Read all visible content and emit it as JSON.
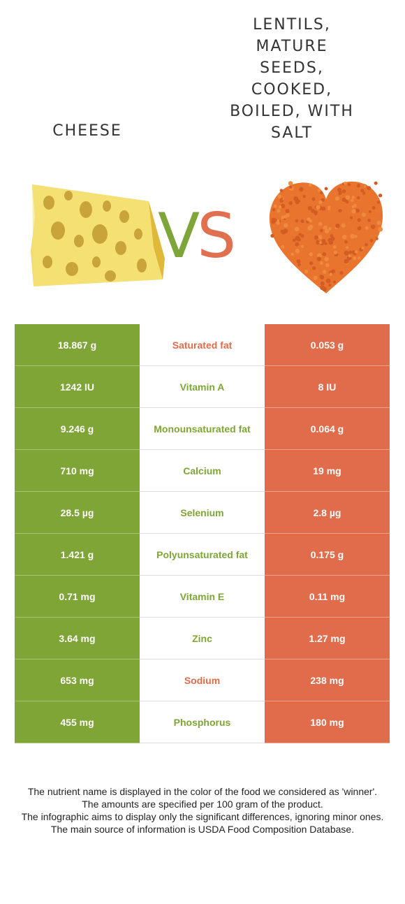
{
  "foods": {
    "left": {
      "name": "CHEESE",
      "color": "#7ea536",
      "image": "cheese-wedge"
    },
    "right": {
      "name": "LENTILS, MATURE SEEDS, COOKED, BOILED, WITH SALT",
      "color": "#e06c4c",
      "image": "lentil-heart"
    }
  },
  "vs": {
    "v": "V",
    "s": "S"
  },
  "nutrients": [
    {
      "left": "18.867 g",
      "name": "Saturated fat",
      "right": "0.053 g",
      "winner": "right"
    },
    {
      "left": "1242 IU",
      "name": "Vitamin A",
      "right": "8 IU",
      "winner": "left"
    },
    {
      "left": "9.246 g",
      "name": "Monounsaturated fat",
      "right": "0.064 g",
      "winner": "left"
    },
    {
      "left": "710 mg",
      "name": "Calcium",
      "right": "19 mg",
      "winner": "left"
    },
    {
      "left": "28.5 µg",
      "name": "Selenium",
      "right": "2.8 µg",
      "winner": "left"
    },
    {
      "left": "1.421 g",
      "name": "Polyunsaturated fat",
      "right": "0.175 g",
      "winner": "left"
    },
    {
      "left": "0.71 mg",
      "name": "Vitamin E",
      "right": "0.11 mg",
      "winner": "left"
    },
    {
      "left": "3.64 mg",
      "name": "Zinc",
      "right": "1.27 mg",
      "winner": "left"
    },
    {
      "left": "653 mg",
      "name": "Sodium",
      "right": "238 mg",
      "winner": "right"
    },
    {
      "left": "455 mg",
      "name": "Phosphorus",
      "right": "180 mg",
      "winner": "left"
    }
  ],
  "footnotes": [
    "The nutrient name is displayed in the color of the food we considered as 'winner'.",
    "The amounts are specified per 100 gram of the product.",
    "The infographic aims to display only the significant differences, ignoring minor ones.",
    "The main source of information is USDA Food Composition Database."
  ]
}
